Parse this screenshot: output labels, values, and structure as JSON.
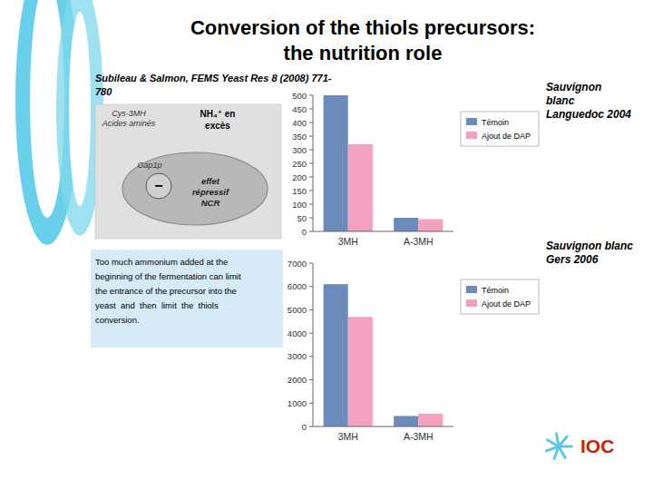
{
  "title": "Conversion of the thiols precursors:\nthe nutrition role",
  "subtitle": "Subileau & Salmon, FEMS Yeast Res 8 (2008) 771-\n780",
  "annotations": [
    "−",
    "Cys-3MH",
    "Acides aminés",
    "NH₄⁺ en",
    "excès",
    "Gap1p",
    "effet",
    "répressif",
    "NCR",
    "Too much ammonium added at the\nbeginning of the fermentation can limit\nthe entrance of the precursor into the\nyeast  and  then  limit  the  thiols\nconversion.",
    "IOC"
  ],
  "chart_data": [
    {
      "type": "bar",
      "title": "Sauvignon\nblanc\nLanguedoc 2004",
      "categories": [
        "3MH",
        "A-3MH"
      ],
      "series": [
        {
          "name": "Témoin",
          "color": "#6b8cba",
          "values": [
            500,
            50
          ]
        },
        {
          "name": "Ajout de DAP",
          "color": "#f4a0c0",
          "values": [
            320,
            45
          ]
        }
      ],
      "ylim": [
        0,
        500
      ],
      "yticks": [
        0,
        50,
        100,
        150,
        200,
        250,
        300,
        350,
        400,
        450,
        500
      ],
      "legend": "right"
    },
    {
      "type": "bar",
      "title": "Sauvignon blanc\nGers 2006",
      "categories": [
        "3MH",
        "A-3MH"
      ],
      "series": [
        {
          "name": "Témoin",
          "color": "#6b8cba",
          "values": [
            6100,
            450
          ]
        },
        {
          "name": "Ajout de DAP",
          "color": "#f4a0c0",
          "values": [
            4700,
            550
          ]
        }
      ],
      "ylim": [
        0,
        7000
      ],
      "yticks": [
        0,
        1000,
        2000,
        3000,
        4000,
        5000,
        6000,
        7000
      ],
      "legend": "right"
    }
  ]
}
